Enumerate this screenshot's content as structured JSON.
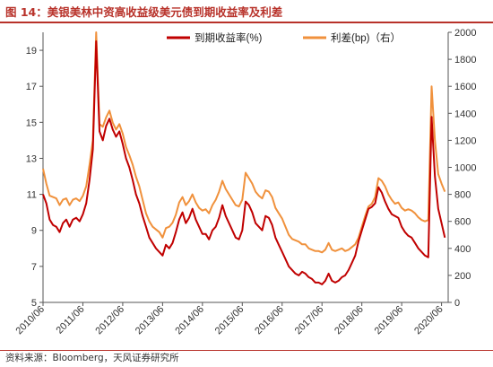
{
  "figure": {
    "title": "图 14：美银美林中资高收益级美元债到期收益率及利差",
    "source": "资料来源：Bloomberg，天风证券研究所"
  },
  "chart_data": {
    "type": "line",
    "title": "图 14：美银美林中资高收益级美元债到期收益率及利差",
    "xlabel": "",
    "ylabel": "",
    "y2label": "",
    "x_tick_labels": [
      "2010/06",
      "2011/06",
      "2012/06",
      "2013/06",
      "2014/06",
      "2015/06",
      "2016/06",
      "2017/06",
      "2018/06",
      "2019/06",
      "2020/06"
    ],
    "ylim": [
      5,
      20
    ],
    "y_ticks": [
      5,
      7,
      9,
      11,
      13,
      15,
      17,
      19
    ],
    "y2lim": [
      0,
      2000
    ],
    "y2_ticks": [
      0,
      200,
      400,
      600,
      800,
      1000,
      1200,
      1400,
      1600,
      1800,
      2000
    ],
    "legend_position": "top-right",
    "grid": false,
    "series": [
      {
        "name": "到期收益率(%)",
        "axis": "left",
        "color": "#c00000",
        "points": [
          [
            "2010-06",
            11.0
          ],
          [
            "2010-07",
            10.5
          ],
          [
            "2010-08",
            9.6
          ],
          [
            "2010-09",
            9.3
          ],
          [
            "2010-10",
            9.2
          ],
          [
            "2010-11",
            8.9
          ],
          [
            "2010-12",
            9.4
          ],
          [
            "2011-01",
            9.6
          ],
          [
            "2011-02",
            9.2
          ],
          [
            "2011-03",
            9.6
          ],
          [
            "2011-04",
            9.7
          ],
          [
            "2011-05",
            9.5
          ],
          [
            "2011-06",
            9.9
          ],
          [
            "2011-07",
            10.5
          ],
          [
            "2011-08",
            11.8
          ],
          [
            "2011-09",
            13.5
          ],
          [
            "2011-10",
            19.5
          ],
          [
            "2011-11",
            14.5
          ],
          [
            "2011-12",
            14.0
          ],
          [
            "2012-01",
            14.8
          ],
          [
            "2012-02",
            15.2
          ],
          [
            "2012-03",
            14.6
          ],
          [
            "2012-04",
            14.2
          ],
          [
            "2012-05",
            14.5
          ],
          [
            "2012-06",
            13.8
          ],
          [
            "2012-07",
            13.0
          ],
          [
            "2012-08",
            12.5
          ],
          [
            "2012-09",
            11.8
          ],
          [
            "2012-10",
            11.0
          ],
          [
            "2012-11",
            10.5
          ],
          [
            "2012-12",
            9.8
          ],
          [
            "2013-01",
            9.2
          ],
          [
            "2013-02",
            8.6
          ],
          [
            "2013-03",
            8.3
          ],
          [
            "2013-04",
            8.0
          ],
          [
            "2013-05",
            7.8
          ],
          [
            "2013-06",
            7.6
          ],
          [
            "2013-07",
            8.2
          ],
          [
            "2013-08",
            8.0
          ],
          [
            "2013-09",
            8.3
          ],
          [
            "2013-10",
            8.9
          ],
          [
            "2013-11",
            9.6
          ],
          [
            "2013-12",
            10.0
          ],
          [
            "2014-01",
            9.4
          ],
          [
            "2014-02",
            9.7
          ],
          [
            "2014-03",
            10.2
          ],
          [
            "2014-04",
            9.6
          ],
          [
            "2014-05",
            9.2
          ],
          [
            "2014-06",
            8.8
          ],
          [
            "2014-07",
            8.8
          ],
          [
            "2014-08",
            8.5
          ],
          [
            "2014-09",
            9.0
          ],
          [
            "2014-10",
            9.2
          ],
          [
            "2014-11",
            9.7
          ],
          [
            "2014-12",
            10.4
          ],
          [
            "2015-01",
            9.8
          ],
          [
            "2015-02",
            9.4
          ],
          [
            "2015-03",
            9.0
          ],
          [
            "2015-04",
            8.6
          ],
          [
            "2015-05",
            8.5
          ],
          [
            "2015-06",
            9.0
          ],
          [
            "2015-07",
            10.6
          ],
          [
            "2015-08",
            10.4
          ],
          [
            "2015-09",
            10.0
          ],
          [
            "2015-10",
            9.4
          ],
          [
            "2015-11",
            9.2
          ],
          [
            "2015-12",
            9.0
          ],
          [
            "2016-01",
            9.8
          ],
          [
            "2016-02",
            9.7
          ],
          [
            "2016-03",
            9.3
          ],
          [
            "2016-04",
            8.6
          ],
          [
            "2016-05",
            8.2
          ],
          [
            "2016-06",
            7.8
          ],
          [
            "2016-07",
            7.4
          ],
          [
            "2016-08",
            7.0
          ],
          [
            "2016-09",
            6.8
          ],
          [
            "2016-10",
            6.6
          ],
          [
            "2016-11",
            6.5
          ],
          [
            "2016-12",
            6.7
          ],
          [
            "2017-01",
            6.6
          ],
          [
            "2017-02",
            6.4
          ],
          [
            "2017-03",
            6.3
          ],
          [
            "2017-04",
            6.1
          ],
          [
            "2017-05",
            6.1
          ],
          [
            "2017-06",
            6.0
          ],
          [
            "2017-07",
            6.2
          ],
          [
            "2017-08",
            6.6
          ],
          [
            "2017-09",
            6.2
          ],
          [
            "2017-10",
            6.1
          ],
          [
            "2017-11",
            6.2
          ],
          [
            "2017-12",
            6.4
          ],
          [
            "2018-01",
            6.5
          ],
          [
            "2018-02",
            6.8
          ],
          [
            "2018-03",
            7.2
          ],
          [
            "2018-04",
            7.6
          ],
          [
            "2018-05",
            8.4
          ],
          [
            "2018-06",
            9.0
          ],
          [
            "2018-07",
            9.6
          ],
          [
            "2018-08",
            10.2
          ],
          [
            "2018-09",
            10.3
          ],
          [
            "2018-10",
            10.5
          ],
          [
            "2018-11",
            11.4
          ],
          [
            "2018-12",
            11.1
          ],
          [
            "2019-01",
            10.6
          ],
          [
            "2019-02",
            10.2
          ],
          [
            "2019-03",
            9.9
          ],
          [
            "2019-04",
            9.8
          ],
          [
            "2019-05",
            9.7
          ],
          [
            "2019-06",
            9.2
          ],
          [
            "2019-07",
            8.9
          ],
          [
            "2019-08",
            8.7
          ],
          [
            "2019-09",
            8.6
          ],
          [
            "2019-10",
            8.3
          ],
          [
            "2019-11",
            8.0
          ],
          [
            "2019-12",
            7.8
          ],
          [
            "2020-01",
            7.6
          ],
          [
            "2020-02",
            7.5
          ],
          [
            "2020-03",
            15.3
          ],
          [
            "2020-04",
            12.0
          ],
          [
            "2020-05",
            10.2
          ],
          [
            "2020-06",
            9.4
          ],
          [
            "2020-07",
            8.6
          ]
        ]
      },
      {
        "name": "利差(bp)（右）",
        "axis": "right",
        "color": "#f0913c",
        "points": [
          [
            "2010-06",
            990
          ],
          [
            "2010-07",
            880
          ],
          [
            "2010-08",
            790
          ],
          [
            "2010-09",
            780
          ],
          [
            "2010-10",
            770
          ],
          [
            "2010-11",
            720
          ],
          [
            "2010-12",
            760
          ],
          [
            "2011-01",
            770
          ],
          [
            "2011-02",
            720
          ],
          [
            "2011-03",
            760
          ],
          [
            "2011-04",
            770
          ],
          [
            "2011-05",
            750
          ],
          [
            "2011-06",
            790
          ],
          [
            "2011-07",
            860
          ],
          [
            "2011-08",
            1020
          ],
          [
            "2011-09",
            1200
          ],
          [
            "2011-10",
            2000
          ],
          [
            "2011-11",
            1320
          ],
          [
            "2011-12",
            1300
          ],
          [
            "2012-01",
            1370
          ],
          [
            "2012-02",
            1420
          ],
          [
            "2012-03",
            1330
          ],
          [
            "2012-04",
            1280
          ],
          [
            "2012-05",
            1320
          ],
          [
            "2012-06",
            1250
          ],
          [
            "2012-07",
            1150
          ],
          [
            "2012-08",
            1090
          ],
          [
            "2012-09",
            1020
          ],
          [
            "2012-10",
            930
          ],
          [
            "2012-11",
            860
          ],
          [
            "2012-12",
            760
          ],
          [
            "2013-01",
            660
          ],
          [
            "2013-02",
            600
          ],
          [
            "2013-03",
            560
          ],
          [
            "2013-04",
            540
          ],
          [
            "2013-05",
            520
          ],
          [
            "2013-06",
            480
          ],
          [
            "2013-07",
            550
          ],
          [
            "2013-08",
            560
          ],
          [
            "2013-09",
            590
          ],
          [
            "2013-10",
            650
          ],
          [
            "2013-11",
            740
          ],
          [
            "2013-12",
            780
          ],
          [
            "2014-01",
            720
          ],
          [
            "2014-02",
            750
          ],
          [
            "2014-03",
            800
          ],
          [
            "2014-04",
            740
          ],
          [
            "2014-05",
            700
          ],
          [
            "2014-06",
            680
          ],
          [
            "2014-07",
            690
          ],
          [
            "2014-08",
            660
          ],
          [
            "2014-09",
            720
          ],
          [
            "2014-10",
            760
          ],
          [
            "2014-11",
            820
          ],
          [
            "2014-12",
            900
          ],
          [
            "2015-01",
            840
          ],
          [
            "2015-02",
            800
          ],
          [
            "2015-03",
            760
          ],
          [
            "2015-04",
            720
          ],
          [
            "2015-05",
            710
          ],
          [
            "2015-06",
            760
          ],
          [
            "2015-07",
            960
          ],
          [
            "2015-08",
            920
          ],
          [
            "2015-09",
            880
          ],
          [
            "2015-10",
            820
          ],
          [
            "2015-11",
            790
          ],
          [
            "2015-12",
            770
          ],
          [
            "2016-01",
            830
          ],
          [
            "2016-02",
            820
          ],
          [
            "2016-03",
            780
          ],
          [
            "2016-04",
            700
          ],
          [
            "2016-05",
            660
          ],
          [
            "2016-06",
            620
          ],
          [
            "2016-07",
            560
          ],
          [
            "2016-08",
            500
          ],
          [
            "2016-09",
            470
          ],
          [
            "2016-10",
            460
          ],
          [
            "2016-11",
            450
          ],
          [
            "2016-12",
            430
          ],
          [
            "2017-01",
            430
          ],
          [
            "2017-02",
            400
          ],
          [
            "2017-03",
            390
          ],
          [
            "2017-04",
            380
          ],
          [
            "2017-05",
            380
          ],
          [
            "2017-06",
            370
          ],
          [
            "2017-07",
            390
          ],
          [
            "2017-08",
            440
          ],
          [
            "2017-09",
            390
          ],
          [
            "2017-10",
            380
          ],
          [
            "2017-11",
            390
          ],
          [
            "2017-12",
            400
          ],
          [
            "2018-01",
            380
          ],
          [
            "2018-02",
            390
          ],
          [
            "2018-03",
            410
          ],
          [
            "2018-04",
            430
          ],
          [
            "2018-05",
            480
          ],
          [
            "2018-06",
            560
          ],
          [
            "2018-07",
            640
          ],
          [
            "2018-08",
            710
          ],
          [
            "2018-09",
            730
          ],
          [
            "2018-10",
            780
          ],
          [
            "2018-11",
            920
          ],
          [
            "2018-12",
            900
          ],
          [
            "2019-01",
            860
          ],
          [
            "2019-02",
            800
          ],
          [
            "2019-03",
            760
          ],
          [
            "2019-04",
            730
          ],
          [
            "2019-05",
            740
          ],
          [
            "2019-06",
            700
          ],
          [
            "2019-07",
            680
          ],
          [
            "2019-08",
            690
          ],
          [
            "2019-09",
            680
          ],
          [
            "2019-10",
            660
          ],
          [
            "2019-11",
            630
          ],
          [
            "2019-12",
            610
          ],
          [
            "2020-01",
            600
          ],
          [
            "2020-02",
            610
          ],
          [
            "2020-03",
            1600
          ],
          [
            "2020-04",
            1200
          ],
          [
            "2020-05",
            950
          ],
          [
            "2020-06",
            880
          ],
          [
            "2020-07",
            820
          ]
        ]
      }
    ]
  }
}
